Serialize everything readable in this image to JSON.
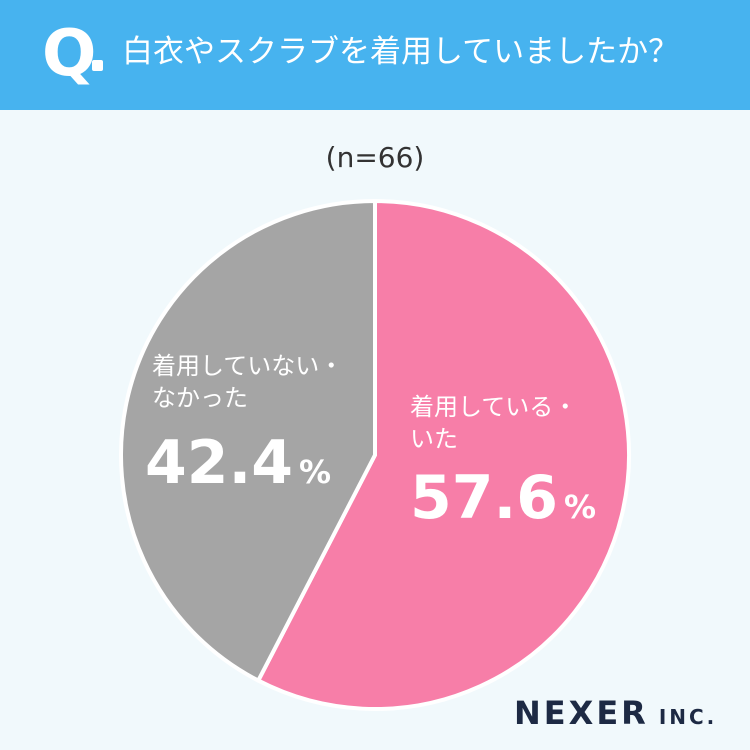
{
  "header": {
    "q_mark": "Q",
    "question": "白衣やスクラブを着用していましたか？"
  },
  "sample_size": "(n=66)",
  "logo": {
    "main": "NEXER",
    "sub": "INC."
  },
  "colors": {
    "header_bg": "#47b3ef",
    "page_bg": "#f1f9fc",
    "slice_wore": "#f77ea8",
    "slice_not": "#a5a5a5"
  },
  "chart_data": {
    "type": "pie",
    "title": "",
    "start_angle": "12 o'clock, clockwise",
    "slices": [
      {
        "label_line1": "着用している・",
        "label_line2": "いた",
        "value": 57.6,
        "value_text": "57.6",
        "unit": "%",
        "color": "#f77ea8"
      },
      {
        "label_line1": "着用していない・",
        "label_line2": "なかった",
        "value": 42.4,
        "value_text": "42.4",
        "unit": "%",
        "color": "#a5a5a5"
      }
    ]
  }
}
